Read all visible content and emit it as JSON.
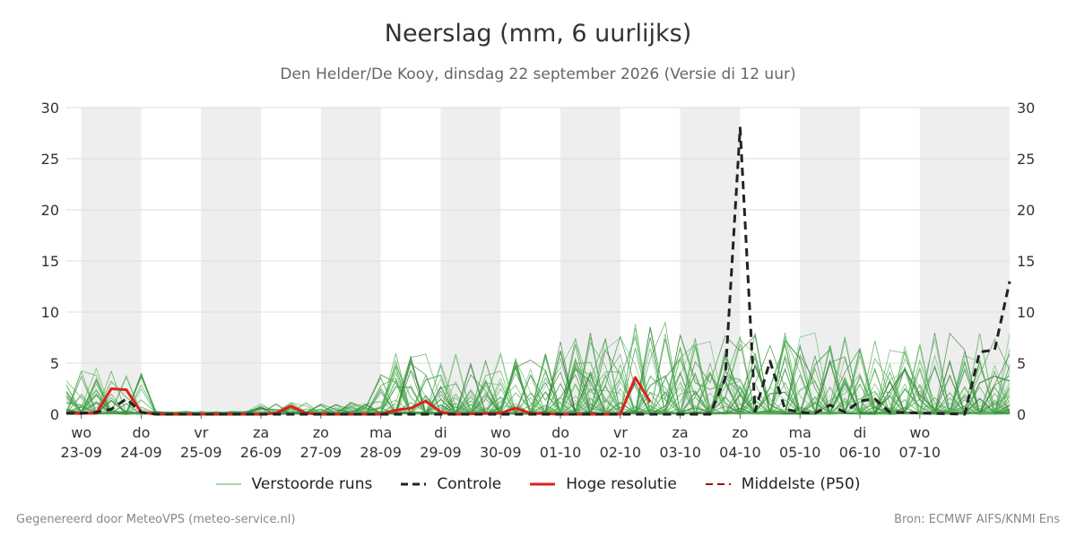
{
  "header": {
    "title": "Neerslag (mm, 6 uurlijks)",
    "subtitle": "Den Helder/De Kooy, dinsdag 22 september 2026 (Versie di 12 uur)"
  },
  "footer": {
    "left": "Gegenereerd door MeteoVPS (meteo-service.nl)",
    "right": "Bron: ECMWF AIFS/KNMI Ens"
  },
  "legend": [
    {
      "label": "Verstoorde runs",
      "color": "#4caf50",
      "style": "thin-solid"
    },
    {
      "label": "Controle",
      "color": "#222222",
      "style": "dashed"
    },
    {
      "label": "Hoge resolutie",
      "color": "#e0201b",
      "style": "thick-solid"
    },
    {
      "label": "Middelste (P50)",
      "color": "#a01010",
      "style": "dashed"
    }
  ],
  "chart_data": {
    "type": "line",
    "ylim": [
      0,
      30
    ],
    "yticks": [
      0,
      5,
      10,
      15,
      20,
      25,
      30
    ],
    "xlim": [
      -0.25,
      15.5
    ],
    "x_unit": "days since 23-09 00:00",
    "grid": true,
    "legend_position": "bottom",
    "shaded_day_bands": [
      [
        0,
        1
      ],
      [
        2,
        3
      ],
      [
        4,
        5
      ],
      [
        6,
        7
      ],
      [
        8,
        9
      ],
      [
        10,
        11
      ],
      [
        12,
        13
      ],
      [
        14,
        15.5
      ]
    ],
    "x_ticks": [
      {
        "day": "wo",
        "date": "23-09"
      },
      {
        "day": "do",
        "date": "24-09"
      },
      {
        "day": "vr",
        "date": "25-09"
      },
      {
        "day": "za",
        "date": "26-09"
      },
      {
        "day": "zo",
        "date": "27-09"
      },
      {
        "day": "ma",
        "date": "28-09"
      },
      {
        "day": "di",
        "date": "29-09"
      },
      {
        "day": "wo",
        "date": "30-09"
      },
      {
        "day": "do",
        "date": "01-10"
      },
      {
        "day": "vr",
        "date": "02-10"
      },
      {
        "day": "za",
        "date": "03-10"
      },
      {
        "day": "zo",
        "date": "04-10"
      },
      {
        "day": "ma",
        "date": "05-10"
      },
      {
        "day": "di",
        "date": "06-10"
      },
      {
        "day": "wo",
        "date": "07-10"
      }
    ],
    "series": [
      {
        "name": "Controle",
        "color": "#222222",
        "dash": true,
        "points": [
          [
            -0.25,
            0.1
          ],
          [
            0,
            0.1
          ],
          [
            0.25,
            0.2
          ],
          [
            0.5,
            0.5
          ],
          [
            0.75,
            1.5
          ],
          [
            1,
            0.2
          ],
          [
            1.25,
            0
          ],
          [
            5.25,
            0
          ],
          [
            10.5,
            0
          ],
          [
            10.75,
            3.5
          ],
          [
            11,
            28
          ],
          [
            11.25,
            0.3
          ],
          [
            11.5,
            5.2
          ],
          [
            11.75,
            0.5
          ],
          [
            12,
            0.2
          ],
          [
            12.25,
            0.1
          ],
          [
            12.5,
            0.9
          ],
          [
            12.75,
            0.2
          ],
          [
            13,
            1.3
          ],
          [
            13.25,
            1.5
          ],
          [
            13.5,
            0.2
          ],
          [
            14.75,
            0
          ],
          [
            15,
            6.1
          ],
          [
            15.25,
            6.3
          ],
          [
            15.5,
            13
          ]
        ]
      },
      {
        "name": "Hoge resolutie",
        "color": "#e0201b",
        "dash": false,
        "points": [
          [
            -0.25,
            0.1
          ],
          [
            0,
            0.1
          ],
          [
            0.25,
            0.1
          ],
          [
            0.5,
            2.5
          ],
          [
            0.75,
            2.4
          ],
          [
            1,
            0.2
          ],
          [
            1.25,
            0
          ],
          [
            3,
            0
          ],
          [
            3.25,
            0.1
          ],
          [
            3.5,
            0.8
          ],
          [
            3.75,
            0.1
          ],
          [
            4,
            0
          ],
          [
            5,
            0
          ],
          [
            5.25,
            0.4
          ],
          [
            5.5,
            0.6
          ],
          [
            5.75,
            1.3
          ],
          [
            6,
            0.2
          ],
          [
            6.25,
            0
          ],
          [
            7,
            0.1
          ],
          [
            7.25,
            0.6
          ],
          [
            7.5,
            0.1
          ],
          [
            8,
            0
          ],
          [
            9,
            0
          ],
          [
            9.25,
            3.6
          ],
          [
            9.5,
            1.2
          ]
        ]
      }
    ]
  }
}
